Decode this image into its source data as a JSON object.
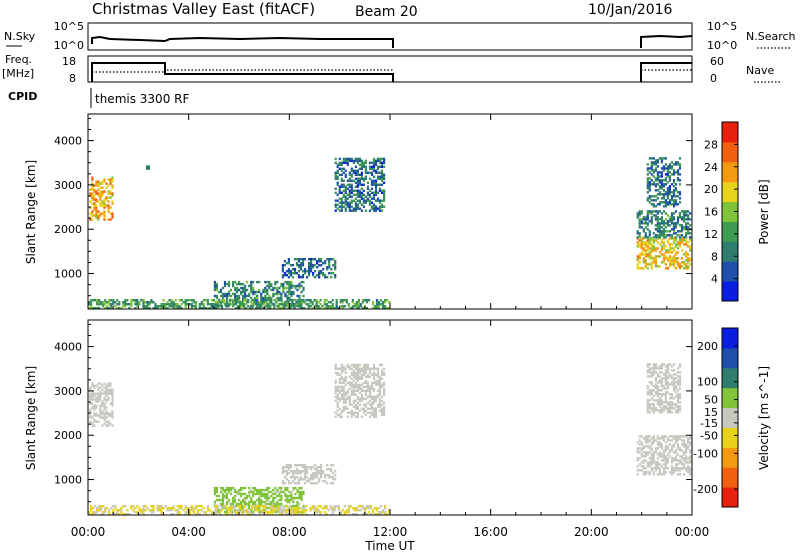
{
  "header": {
    "station": "Christmas Valley East (fitACF)",
    "beam": "Beam 20",
    "date": "10/Jan/2016"
  },
  "nsky_panel": {
    "left_label": "N.Sky",
    "left_ticks": [
      "10^5",
      "10^0"
    ],
    "right_label": "N.Search",
    "right_ticks": [
      "10^5",
      "10^0"
    ]
  },
  "freq_panel": {
    "left_label_line1": "Freq.",
    "left_label_line2": "[MHz]",
    "left_ticks": [
      "18",
      "8"
    ],
    "right_label": "Nave",
    "right_ticks": [
      "60",
      "0"
    ]
  },
  "cpid_panel": {
    "label": "CPID",
    "program": "themis 3300 RF"
  },
  "chart_data": [
    {
      "type": "heatmap",
      "name": "power",
      "ylabel": "Slant Range [km]",
      "xlabel": "Time UT",
      "ylim": [
        200,
        4600
      ],
      "xlim": [
        0,
        24
      ],
      "y_ticks": [
        "4000",
        "3000",
        "2000",
        "1000"
      ],
      "y_tick_values": [
        4000,
        3000,
        2000,
        1000
      ],
      "colorbar": {
        "label": "Power [dB]",
        "tick_labels": [
          "28",
          "24",
          "20",
          "16",
          "12",
          "8",
          "4"
        ],
        "tick_values": [
          28,
          24,
          20,
          16,
          12,
          8,
          4
        ],
        "range": [
          0,
          32
        ],
        "colors": [
          "#0a1ee0",
          "#1f4fa8",
          "#2f7d6e",
          "#3d9b52",
          "#7fc43a",
          "#e8d21a",
          "#f39a12",
          "#f06010",
          "#e82010"
        ]
      },
      "echo_regions": [
        {
          "t": [
            0.05,
            1.0
          ],
          "r": [
            2200,
            3150
          ],
          "power": 22
        },
        {
          "t": [
            2.3,
            2.4
          ],
          "r": [
            3350,
            3450
          ],
          "power": 6
        },
        {
          "t": [
            5.0,
            8.6
          ],
          "r": [
            250,
            800
          ],
          "power": 10
        },
        {
          "t": [
            7.7,
            9.8
          ],
          "r": [
            900,
            1350
          ],
          "power": 8
        },
        {
          "t": [
            9.8,
            11.8
          ],
          "r": [
            2400,
            3600
          ],
          "power": 8
        },
        {
          "t": [
            0.0,
            12.0
          ],
          "r": [
            200,
            400
          ],
          "power": 12
        },
        {
          "t": [
            21.8,
            23.9
          ],
          "r": [
            1100,
            1800
          ],
          "power": 20
        },
        {
          "t": [
            21.8,
            23.9
          ],
          "r": [
            1800,
            2400
          ],
          "power": 10
        },
        {
          "t": [
            22.2,
            23.5
          ],
          "r": [
            2500,
            3600
          ],
          "power": 8
        }
      ]
    },
    {
      "type": "heatmap",
      "name": "velocity",
      "ylabel": "Slant Range [km]",
      "xlabel": "Time UT",
      "ylim": [
        200,
        4600
      ],
      "xlim": [
        0,
        24
      ],
      "y_ticks": [
        "4000",
        "3000",
        "2000",
        "1000"
      ],
      "y_tick_values": [
        4000,
        3000,
        2000,
        1000
      ],
      "x_ticks": [
        "00:00",
        "04:00",
        "08:00",
        "12:00",
        "16:00",
        "20:00",
        "00:00"
      ],
      "x_tick_values": [
        0,
        4,
        8,
        12,
        16,
        20,
        24
      ],
      "colorbar": {
        "label": "Velocity [m s^-1]",
        "tick_labels": [
          "200",
          "100",
          "50",
          "15",
          "-15",
          "-50",
          "-100",
          "-200"
        ],
        "tick_values": [
          200,
          100,
          50,
          15,
          -15,
          -50,
          -100,
          -200
        ],
        "range": [
          -250,
          250
        ],
        "colors": [
          "#e82010",
          "#f06010",
          "#f39a12",
          "#e8d21a",
          "#c8c8c0",
          "#7fc43a",
          "#2f7d6e",
          "#1f4fa8",
          "#0a1ee0"
        ]
      },
      "echo_regions": [
        {
          "t": [
            0.05,
            1.0
          ],
          "r": [
            2200,
            3150
          ],
          "velocity": 0
        },
        {
          "t": [
            5.0,
            8.6
          ],
          "r": [
            250,
            800
          ],
          "velocity": 40
        },
        {
          "t": [
            7.7,
            9.8
          ],
          "r": [
            900,
            1350
          ],
          "velocity": 0
        },
        {
          "t": [
            9.8,
            11.8
          ],
          "r": [
            2400,
            3600
          ],
          "velocity": 0
        },
        {
          "t": [
            0.0,
            12.0
          ],
          "r": [
            200,
            400
          ],
          "velocity": -30
        },
        {
          "t": [
            21.8,
            23.9
          ],
          "r": [
            1100,
            2000
          ],
          "velocity": 0
        },
        {
          "t": [
            22.2,
            23.5
          ],
          "r": [
            2500,
            3600
          ],
          "velocity": 5
        }
      ]
    }
  ]
}
